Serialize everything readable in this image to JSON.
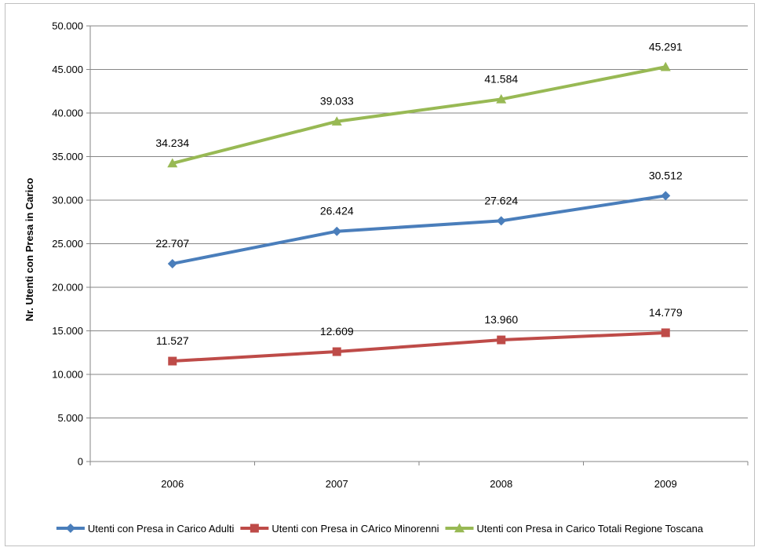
{
  "chart_data": {
    "type": "line",
    "title": "",
    "xlabel": "",
    "ylabel": "Nr. Utenti con Presa in Carico",
    "categories": [
      "2006",
      "2007",
      "2008",
      "2009"
    ],
    "ylim": [
      0,
      50000
    ],
    "ytick_step": 5000,
    "ytick_labels": [
      "0",
      "5.000",
      "10.000",
      "15.000",
      "20.000",
      "25.000",
      "30.000",
      "35.000",
      "40.000",
      "45.000",
      "50.000"
    ],
    "grid": "horizontal",
    "legend_position": "bottom",
    "series": [
      {
        "name": "Utenti con Presa in Carico Adulti",
        "color": "#4A7EBB",
        "marker": "diamond",
        "values": [
          22707,
          26424,
          27624,
          30512
        ],
        "labels": [
          "22.707",
          "26.424",
          "27.624",
          "30.512"
        ]
      },
      {
        "name": "Utenti con Presa in CArico Minorenni",
        "color": "#BE4B48",
        "marker": "square",
        "values": [
          11527,
          12609,
          13960,
          14779
        ],
        "labels": [
          "11.527",
          "12.609",
          "13.960",
          "14.779"
        ]
      },
      {
        "name": "Utenti con Presa in Carico Totali Regione Toscana",
        "color": "#98B954",
        "marker": "triangle",
        "values": [
          34234,
          39033,
          41584,
          45291
        ],
        "labels": [
          "34.234",
          "39.033",
          "41.584",
          "45.291"
        ]
      }
    ]
  }
}
